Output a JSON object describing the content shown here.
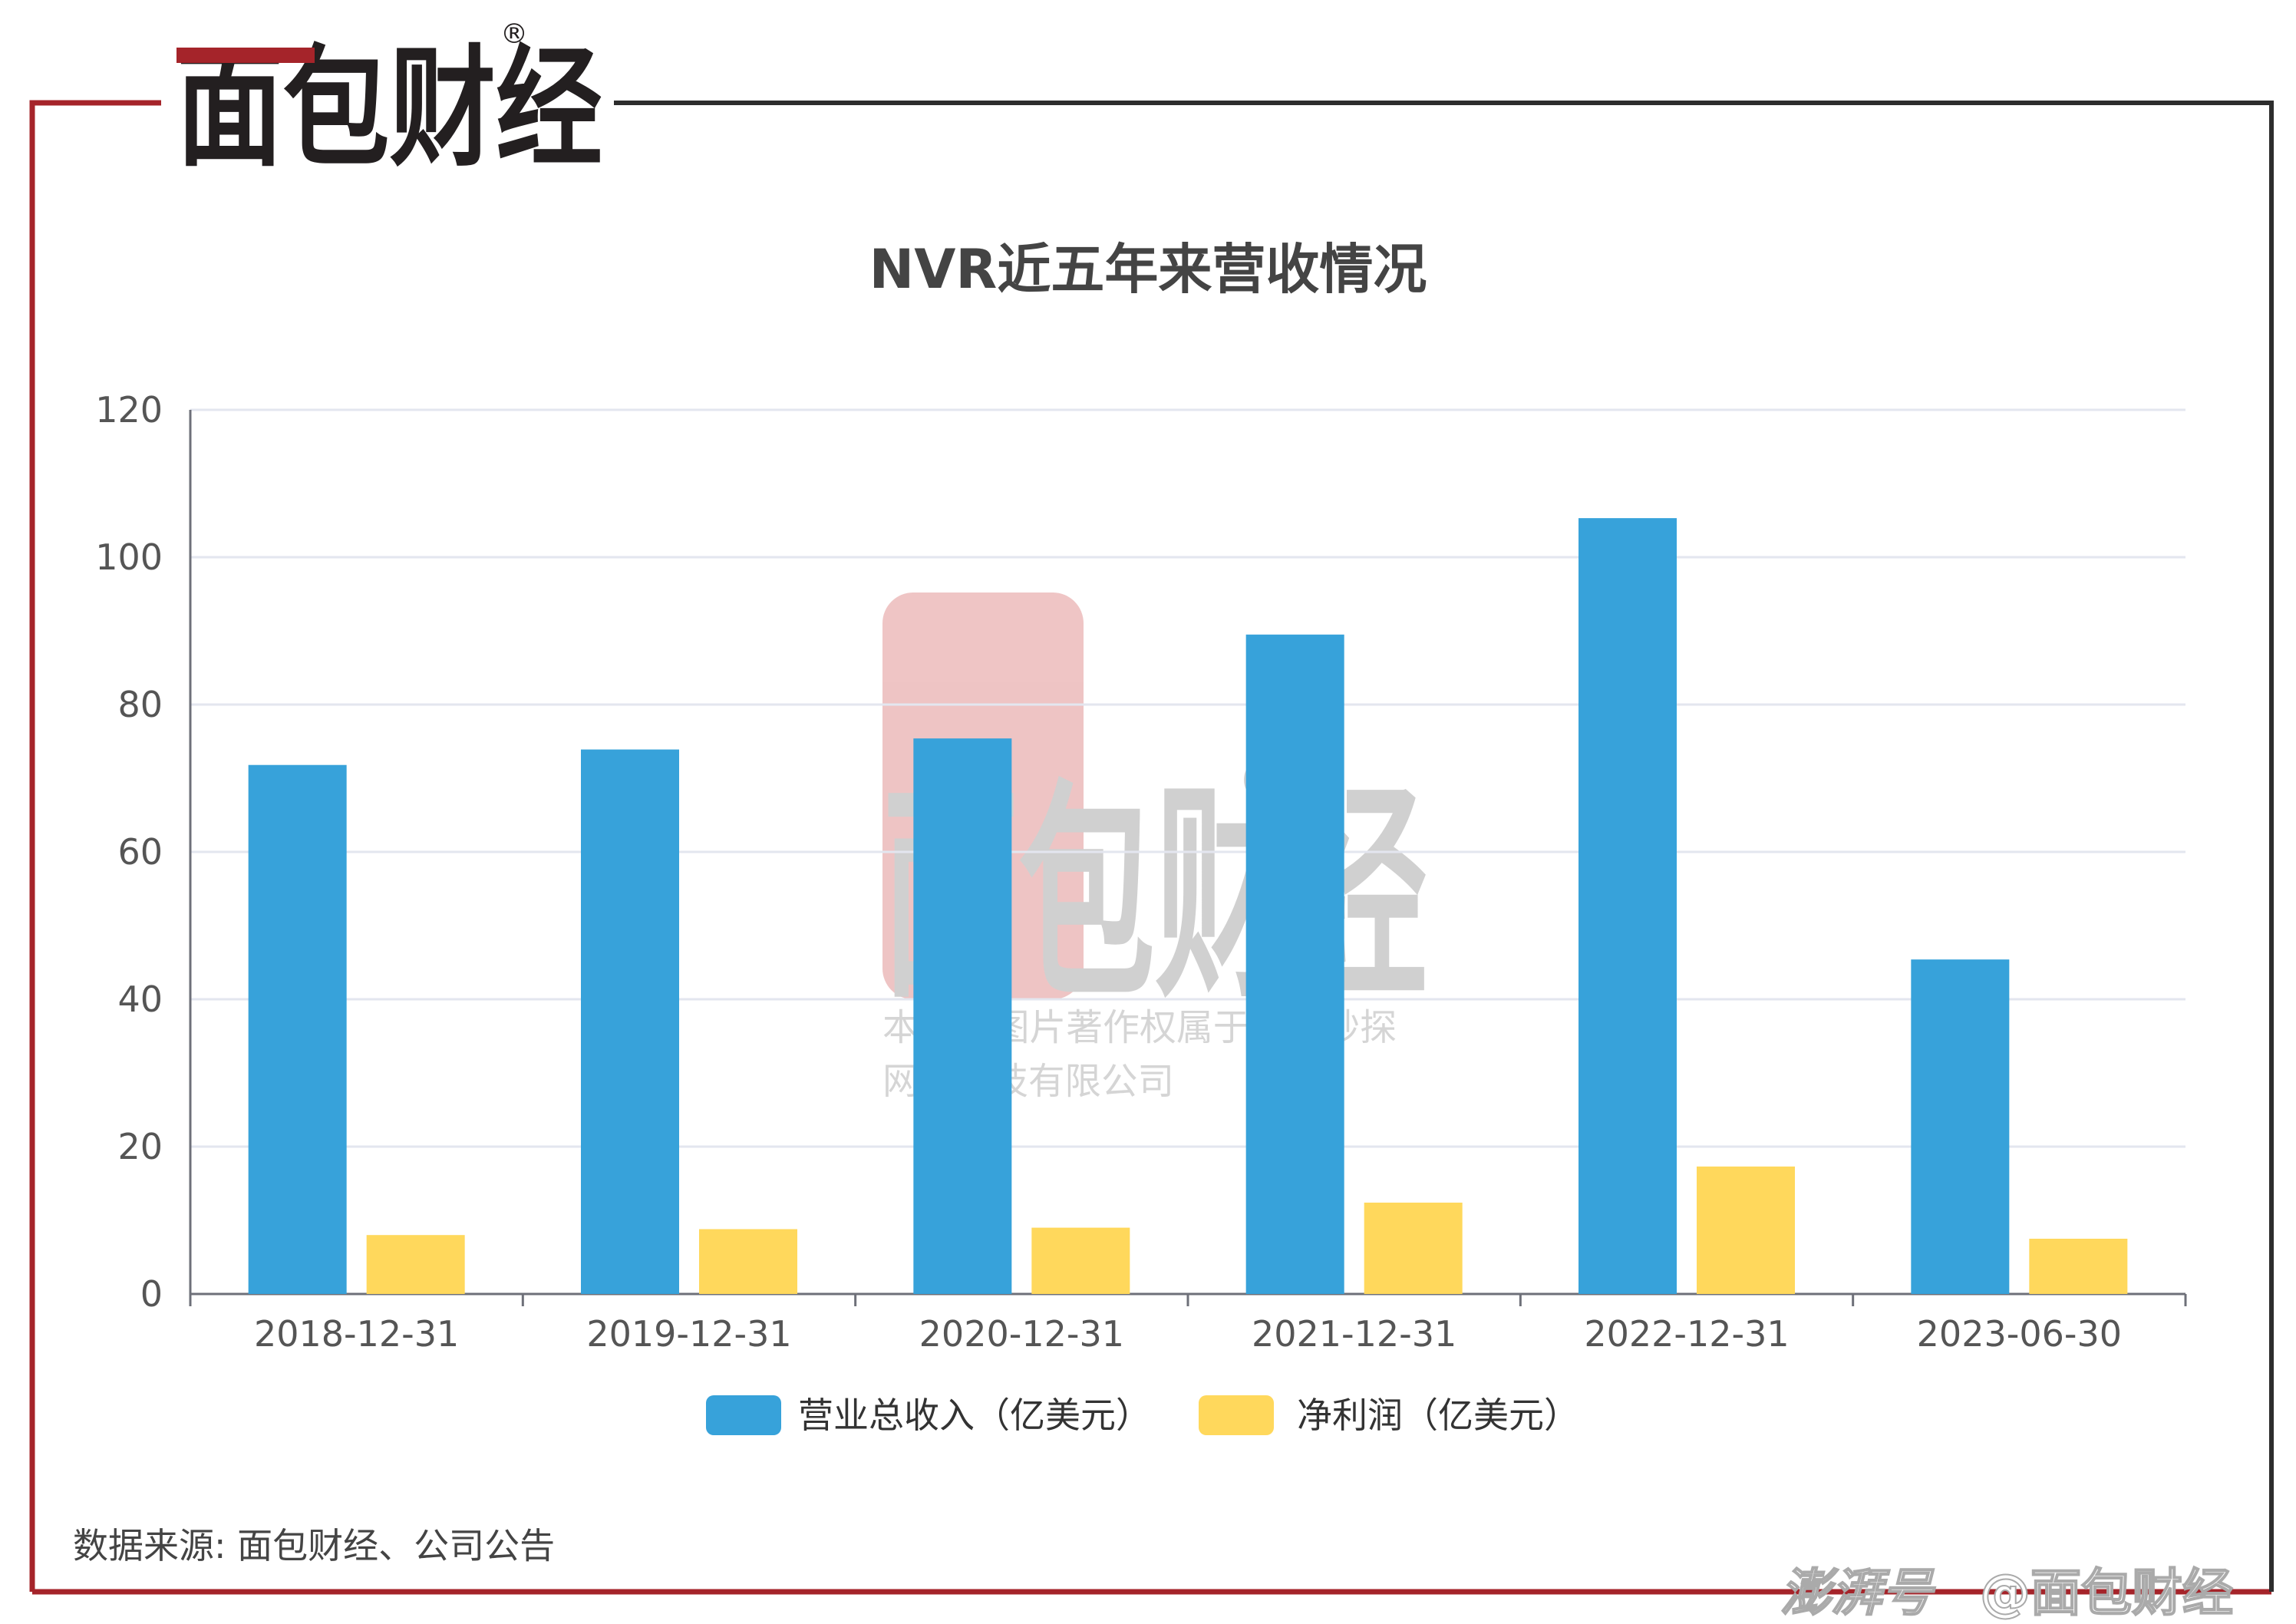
{
  "brand": {
    "logo_text": "面包财经",
    "registered_mark": "®",
    "colors": {
      "brand_red": "#a5242a",
      "brand_dark": "#231f20"
    }
  },
  "chart_data": {
    "type": "bar",
    "title": "NVR近五年来营收情况",
    "categories": [
      "2018-12-31",
      "2019-12-31",
      "2020-12-31",
      "2021-12-31",
      "2022-12-31",
      "2023-06-30"
    ],
    "series": [
      {
        "name": "营业总收入（亿美元）",
        "color": "#37a2da",
        "values": [
          71.8,
          73.9,
          75.4,
          89.5,
          105.3,
          45.4
        ]
      },
      {
        "name": "净利润（亿美元）",
        "color": "#ffd85c",
        "values": [
          8.0,
          8.8,
          9.0,
          12.4,
          17.3,
          7.5
        ]
      }
    ],
    "ylim": [
      0,
      120
    ],
    "yticks": [
      0,
      20,
      40,
      60,
      80,
      100,
      120
    ],
    "grid": true,
    "legend_position": "bottom"
  },
  "watermark": {
    "copyright_line1": "本图表图片著作权属于上海妙探",
    "copyright_line2": "网络科技有限公司"
  },
  "footer": {
    "source": "数据来源: 面包财经、公司公告",
    "platform": "澎湃号",
    "handle": "@面包财经"
  }
}
